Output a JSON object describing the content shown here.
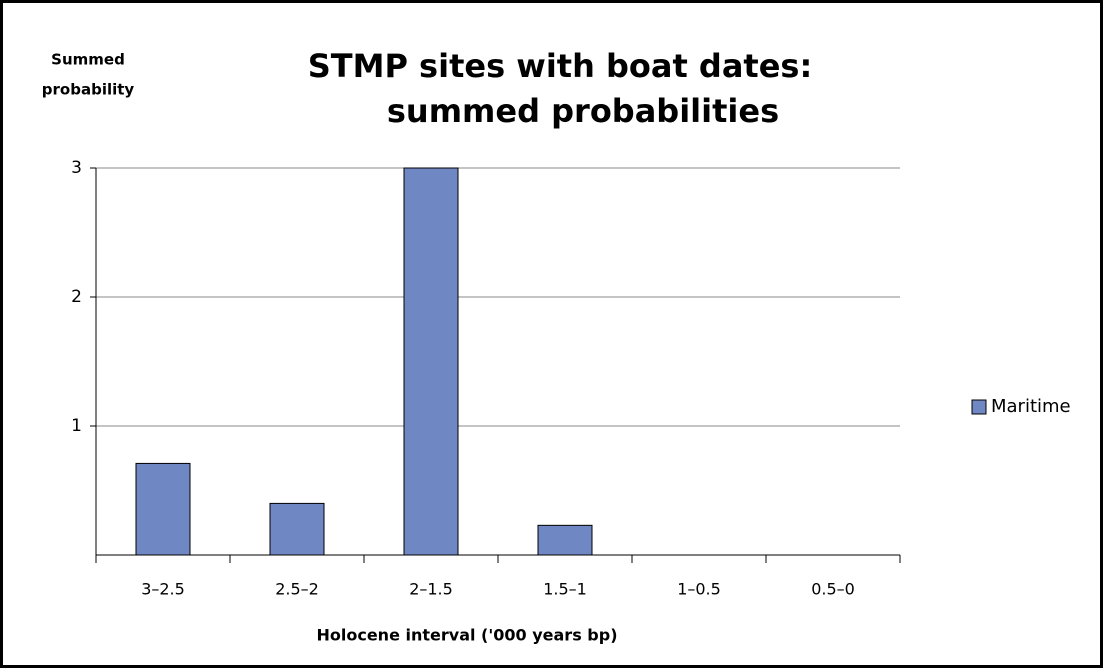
{
  "chart_data": {
    "type": "bar",
    "title": [
      "STMP sites with boat dates:",
      "summed probabilities"
    ],
    "y_label": [
      "Summed",
      "probability"
    ],
    "x_label": "Holocene interval ('000 years bp)",
    "categories": [
      "3–2.5",
      "2.5–2",
      "2–1.5",
      "1.5–1",
      "1–0.5",
      "0.5–0"
    ],
    "series": [
      {
        "name": "Maritime",
        "color": "#6f88c4",
        "values": [
          0.71,
          0.4,
          3,
          0.23,
          0,
          0
        ]
      }
    ],
    "ylim": [
      0,
      3
    ],
    "yticks": [
      1,
      2,
      3
    ],
    "grid": true,
    "legend": "right"
  }
}
